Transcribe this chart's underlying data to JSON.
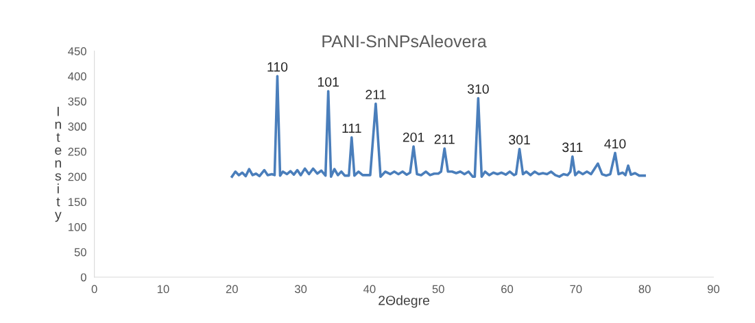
{
  "chart_data": {
    "type": "line",
    "title": "PANI-SnNPsAleovera",
    "xlabel": "2Θdegre",
    "ylabel": "Intensity",
    "xlim": [
      0,
      90
    ],
    "xticks": [
      0,
      10,
      20,
      30,
      40,
      50,
      60,
      70,
      80,
      90
    ],
    "ylim": [
      0,
      450
    ],
    "yticks": [
      0,
      50,
      100,
      150,
      200,
      250,
      300,
      350,
      400,
      450
    ],
    "grid": false,
    "marker": "none",
    "line_style": "solid",
    "x": [
      20.0,
      20.5,
      21.0,
      21.5,
      22.0,
      22.5,
      23.0,
      23.5,
      24.0,
      24.7,
      25.2,
      25.8,
      26.2,
      26.6,
      27.0,
      27.4,
      28.0,
      28.5,
      29.0,
      29.5,
      30.0,
      30.6,
      31.2,
      31.8,
      32.4,
      33.0,
      33.6,
      34.0,
      34.4,
      34.9,
      35.4,
      35.9,
      36.4,
      37.0,
      37.4,
      37.8,
      38.4,
      39.0,
      39.6,
      40.1,
      40.9,
      41.6,
      42.3,
      43.0,
      43.6,
      44.2,
      44.8,
      45.4,
      45.9,
      46.4,
      46.9,
      47.5,
      48.2,
      48.8,
      49.4,
      50.0,
      50.4,
      50.9,
      51.4,
      52.0,
      52.6,
      53.2,
      53.8,
      54.4,
      55.0,
      55.3,
      55.8,
      56.3,
      56.8,
      57.4,
      58.0,
      58.6,
      59.2,
      59.8,
      60.4,
      61.0,
      61.3,
      61.8,
      62.3,
      62.8,
      63.4,
      64.0,
      64.6,
      65.2,
      65.8,
      66.4,
      67.0,
      67.6,
      68.2,
      68.8,
      69.2,
      69.5,
      69.9,
      70.4,
      71.0,
      71.6,
      72.2,
      73.2,
      73.8,
      74.4,
      75.0,
      75.7,
      76.2,
      76.8,
      77.2,
      77.6,
      78.0,
      78.6,
      79.2,
      80.0
    ],
    "series": [
      {
        "color": "#4a7ebb",
        "values": [
          200,
          210,
          203,
          208,
          201,
          215,
          203,
          206,
          201,
          213,
          203,
          205,
          203,
          400,
          202,
          210,
          205,
          211,
          204,
          213,
          203,
          216,
          205,
          216,
          206,
          212,
          202,
          370,
          200,
          215,
          203,
          210,
          202,
          202,
          278,
          202,
          210,
          203,
          203,
          203,
          345,
          200,
          210,
          205,
          210,
          205,
          210,
          204,
          208,
          260,
          205,
          203,
          210,
          203,
          206,
          206,
          210,
          256,
          210,
          210,
          207,
          210,
          205,
          210,
          200,
          200,
          356,
          200,
          210,
          203,
          208,
          205,
          208,
          204,
          210,
          203,
          205,
          255,
          205,
          210,
          203,
          210,
          205,
          207,
          205,
          210,
          203,
          200,
          205,
          203,
          210,
          240,
          203,
          210,
          205,
          210,
          205,
          226,
          205,
          202,
          205,
          247,
          205,
          208,
          203,
          222,
          204,
          207,
          202,
          202
        ]
      }
    ],
    "annotations": [
      {
        "text": "110",
        "x": 26.6,
        "y": 400
      },
      {
        "text": "101",
        "x": 34.0,
        "y": 370
      },
      {
        "text": "111",
        "x": 37.4,
        "y": 278
      },
      {
        "text": "211",
        "x": 40.9,
        "y": 345
      },
      {
        "text": "201",
        "x": 46.4,
        "y": 260
      },
      {
        "text": "211",
        "x": 50.9,
        "y": 256
      },
      {
        "text": "310",
        "x": 55.8,
        "y": 356
      },
      {
        "text": "301",
        "x": 61.8,
        "y": 255
      },
      {
        "text": "311",
        "x": 69.5,
        "y": 240
      },
      {
        "text": "410",
        "x": 75.7,
        "y": 247
      }
    ]
  }
}
